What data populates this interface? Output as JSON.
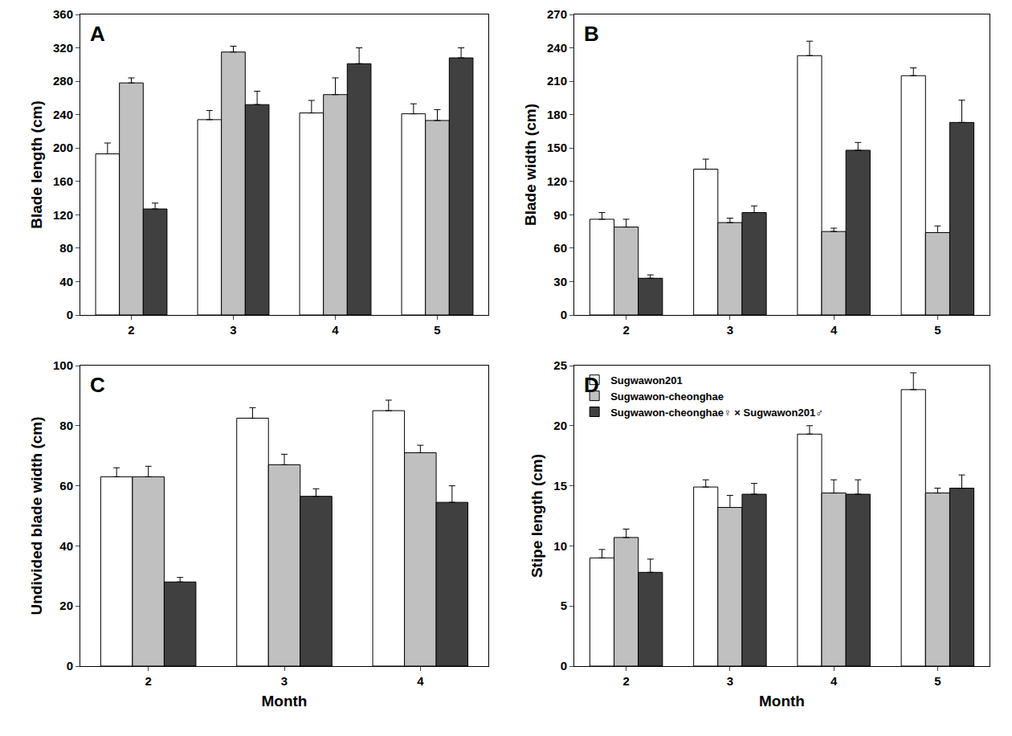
{
  "chart_data": [
    {
      "type": "bar",
      "title": "A",
      "y_label": "Blade length (cm)",
      "categories": [
        "2",
        "3",
        "4",
        "5"
      ],
      "ylim": [
        0,
        360
      ],
      "yticks": [
        0,
        40,
        80,
        120,
        160,
        200,
        240,
        280,
        320,
        360
      ],
      "grid": false,
      "series": [
        {
          "color": "#ffffff",
          "values": [
            193,
            234,
            242,
            241
          ],
          "errors": [
            13,
            11,
            15,
            12
          ]
        },
        {
          "color": "#c0c0c0",
          "values": [
            278,
            315,
            264,
            233
          ],
          "errors": [
            6,
            7,
            20,
            13
          ]
        },
        {
          "color": "#404040",
          "values": [
            127,
            252,
            301,
            308
          ],
          "errors": [
            7,
            16,
            19,
            12
          ]
        }
      ]
    },
    {
      "type": "bar",
      "title": "B",
      "y_label": "Blade width (cm)",
      "categories": [
        "2",
        "3",
        "4",
        "5"
      ],
      "ylim": [
        0,
        270
      ],
      "yticks": [
        0,
        30,
        60,
        90,
        120,
        150,
        180,
        210,
        240,
        270
      ],
      "grid": false,
      "series": [
        {
          "color": "#ffffff",
          "values": [
            86,
            131,
            233,
            215
          ],
          "errors": [
            6,
            9,
            13,
            7
          ]
        },
        {
          "color": "#c0c0c0",
          "values": [
            79,
            83,
            75,
            74
          ],
          "errors": [
            7,
            4,
            3,
            6
          ]
        },
        {
          "color": "#404040",
          "values": [
            33,
            92,
            148,
            173
          ],
          "errors": [
            3,
            6,
            7,
            20
          ]
        }
      ]
    },
    {
      "type": "bar",
      "title": "C",
      "y_label": "Undivided blade width (cm)",
      "x_label": "Month",
      "categories": [
        "2",
        "3",
        "4"
      ],
      "ylim": [
        0,
        100
      ],
      "yticks": [
        0,
        20,
        40,
        60,
        80,
        100
      ],
      "grid": false,
      "series": [
        {
          "color": "#ffffff",
          "values": [
            63,
            82.5,
            85
          ],
          "errors": [
            3,
            3.5,
            3.5
          ]
        },
        {
          "color": "#c0c0c0",
          "values": [
            63,
            67,
            71
          ],
          "errors": [
            3.5,
            3.5,
            2.5
          ]
        },
        {
          "color": "#404040",
          "values": [
            28,
            56.5,
            54.5
          ],
          "errors": [
            1.5,
            2.5,
            5.5
          ]
        }
      ]
    },
    {
      "type": "bar",
      "title": "D",
      "y_label": "Stipe length (cm)",
      "x_label": "Month",
      "categories": [
        "2",
        "3",
        "4",
        "5"
      ],
      "ylim": [
        0,
        25
      ],
      "yticks": [
        0,
        5,
        10,
        15,
        20,
        25
      ],
      "grid": false,
      "legend": "upper left",
      "series": [
        {
          "name": "Sugwawon201",
          "color": "#ffffff",
          "values": [
            9,
            14.9,
            19.3,
            23
          ],
          "errors": [
            0.7,
            0.6,
            0.7,
            1.4
          ]
        },
        {
          "name": "Sugwawon-cheonghae",
          "color": "#c0c0c0",
          "values": [
            10.7,
            13.2,
            14.4,
            14.4
          ],
          "errors": [
            0.7,
            1,
            1.1,
            0.4
          ]
        },
        {
          "name": "Sugwawon-cheonghae♀ × Sugwawon201♂",
          "color": "#404040",
          "values": [
            7.8,
            14.3,
            14.3,
            14.8
          ],
          "errors": [
            1.1,
            0.9,
            1.2,
            1.1
          ]
        }
      ]
    }
  ]
}
